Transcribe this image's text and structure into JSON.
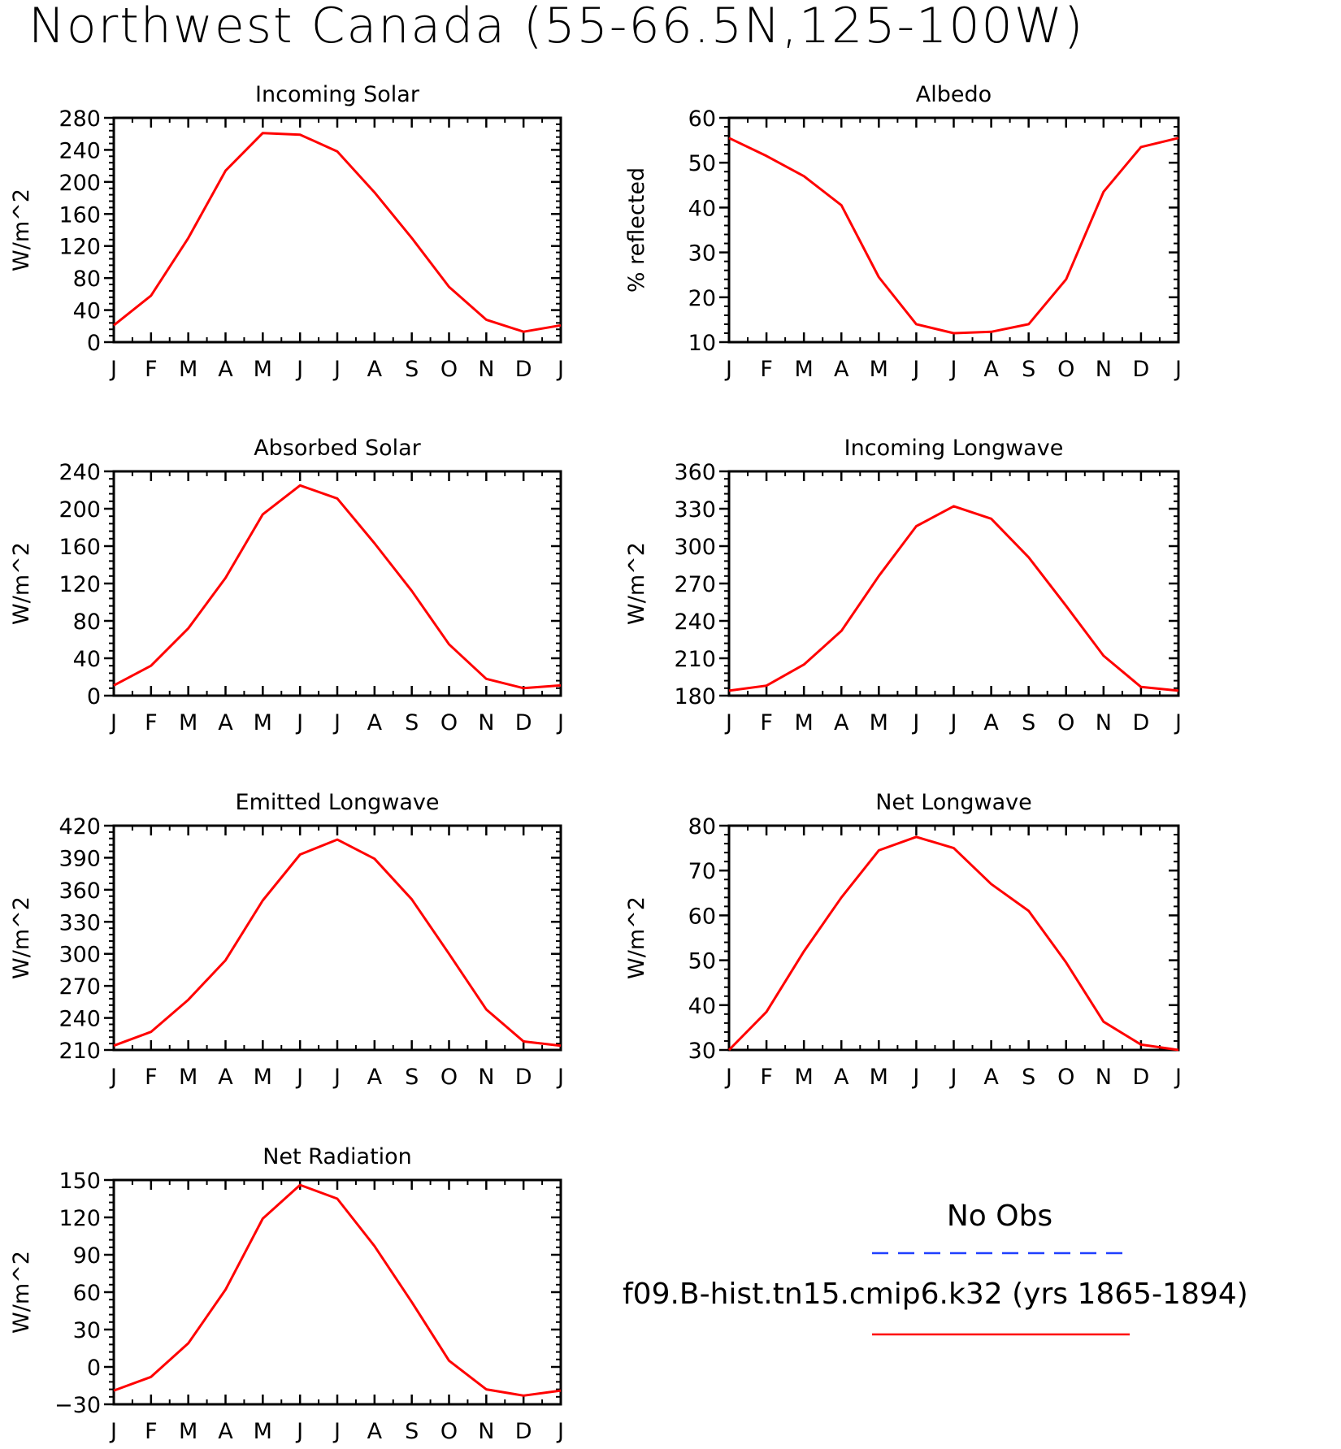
{
  "title": "Northwest Canada (55-66.5N,125-100W)",
  "legend": {
    "obs_label": "No Obs",
    "obs_color": "#1f3fff",
    "model_label": "f09.B-hist.tn15.cmip6.k32 (yrs 1865-1894)",
    "model_color": "#ff0000"
  },
  "chart_data": [
    {
      "type": "line",
      "title": "Incoming Solar",
      "ylabel": "W/m^2",
      "categories": [
        "J",
        "F",
        "M",
        "A",
        "M",
        "J",
        "J",
        "A",
        "S",
        "O",
        "N",
        "D",
        "J"
      ],
      "ylim": [
        0,
        280
      ],
      "yticks": [
        0,
        40,
        80,
        120,
        160,
        200,
        240,
        280
      ],
      "series": [
        {
          "name": "f09.B-hist.tn15.cmip6.k32 (yrs 1865-1894)",
          "values": [
            21,
            58,
            130,
            214,
            261,
            259,
            238,
            187,
            130,
            69,
            28,
            13,
            21
          ]
        }
      ]
    },
    {
      "type": "line",
      "title": "Albedo",
      "ylabel": "% reflected",
      "categories": [
        "J",
        "F",
        "M",
        "A",
        "M",
        "J",
        "J",
        "A",
        "S",
        "O",
        "N",
        "D",
        "J"
      ],
      "ylim": [
        10,
        60
      ],
      "yticks": [
        10,
        20,
        30,
        40,
        50,
        60
      ],
      "series": [
        {
          "name": "f09.B-hist.tn15.cmip6.k32 (yrs 1865-1894)",
          "values": [
            55.5,
            51.5,
            47,
            40.5,
            24.5,
            14,
            12,
            12.3,
            14,
            24,
            43.5,
            53.5,
            55.5
          ]
        }
      ]
    },
    {
      "type": "line",
      "title": "Absorbed Solar",
      "ylabel": "W/m^2",
      "categories": [
        "J",
        "F",
        "M",
        "A",
        "M",
        "J",
        "J",
        "A",
        "S",
        "O",
        "N",
        "D",
        "J"
      ],
      "ylim": [
        0,
        240
      ],
      "yticks": [
        0,
        40,
        80,
        120,
        160,
        200,
        240
      ],
      "series": [
        {
          "name": "f09.B-hist.tn15.cmip6.k32 (yrs 1865-1894)",
          "values": [
            11,
            32,
            72,
            126,
            194,
            225,
            211,
            163,
            112,
            55,
            18,
            8,
            11
          ]
        }
      ]
    },
    {
      "type": "line",
      "title": "Incoming Longwave",
      "ylabel": "W/m^2",
      "categories": [
        "J",
        "F",
        "M",
        "A",
        "M",
        "J",
        "J",
        "A",
        "S",
        "O",
        "N",
        "D",
        "J"
      ],
      "ylim": [
        180,
        360
      ],
      "yticks": [
        180,
        210,
        240,
        270,
        300,
        330,
        360
      ],
      "series": [
        {
          "name": "f09.B-hist.tn15.cmip6.k32 (yrs 1865-1894)",
          "values": [
            184,
            188,
            205,
            232,
            276,
            316,
            332,
            322,
            291,
            252,
            212,
            187,
            184
          ]
        }
      ]
    },
    {
      "type": "line",
      "title": "Emitted Longwave",
      "ylabel": "W/m^2",
      "categories": [
        "J",
        "F",
        "M",
        "A",
        "M",
        "J",
        "J",
        "A",
        "S",
        "O",
        "N",
        "D",
        "J"
      ],
      "ylim": [
        210,
        420
      ],
      "yticks": [
        210,
        240,
        270,
        300,
        330,
        360,
        390,
        420
      ],
      "series": [
        {
          "name": "f09.B-hist.tn15.cmip6.k32 (yrs 1865-1894)",
          "values": [
            214,
            227,
            257,
            294,
            350,
            393,
            407,
            389,
            351,
            300,
            248,
            218,
            214
          ]
        }
      ]
    },
    {
      "type": "line",
      "title": "Net Longwave",
      "ylabel": "W/m^2",
      "categories": [
        "J",
        "F",
        "M",
        "A",
        "M",
        "J",
        "J",
        "A",
        "S",
        "O",
        "N",
        "D",
        "J"
      ],
      "ylim": [
        30,
        80
      ],
      "yticks": [
        30,
        40,
        50,
        60,
        70,
        80
      ],
      "series": [
        {
          "name": "f09.B-hist.tn15.cmip6.k32 (yrs 1865-1894)",
          "values": [
            30,
            38.5,
            52,
            64,
            74.5,
            77.5,
            75,
            67,
            61,
            49.5,
            36.3,
            31.2,
            30
          ]
        }
      ]
    },
    {
      "type": "line",
      "title": "Net Radiation",
      "ylabel": "W/m^2",
      "categories": [
        "J",
        "F",
        "M",
        "A",
        "M",
        "J",
        "J",
        "A",
        "S",
        "O",
        "N",
        "D",
        "J"
      ],
      "ylim": [
        -30,
        150
      ],
      "yticks": [
        -30,
        0,
        30,
        60,
        90,
        120,
        150
      ],
      "series": [
        {
          "name": "f09.B-hist.tn15.cmip6.k32 (yrs 1865-1894)",
          "values": [
            -19,
            -8,
            19,
            62,
            119,
            146,
            135,
            97,
            52,
            5,
            -18,
            -23,
            -19
          ]
        }
      ]
    }
  ]
}
